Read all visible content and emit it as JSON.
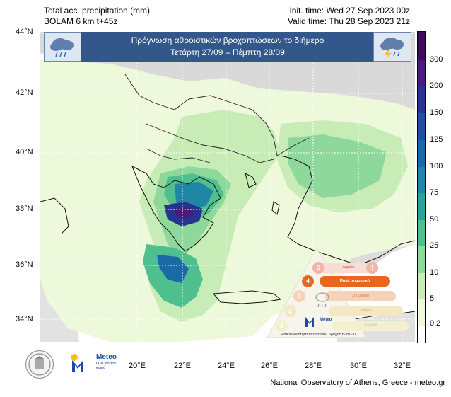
{
  "header": {
    "left_line1": "Total acc. precipitation (mm)",
    "left_line2": "BOLAM 6 km t+45z",
    "right_line1": "Init. time: Wed 27 Sep 2023 00z",
    "right_line2": "Valid time: Thu 28 Sep 2023 21z"
  },
  "banner": {
    "title": "Πρόγνωση αθροιστικών βροχοπτώσεων το διήμερο",
    "subtitle": "Τετάρτη 27/09 – Πέμπτη 28/09",
    "left_icon": "rain-cloud-icon",
    "right_icon": "thunderstorm-cloud-icon"
  },
  "axes": {
    "lat_labels": [
      "44°N",
      "42°N",
      "40°N",
      "38°N",
      "36°N",
      "34°N"
    ],
    "lon_labels": [
      "20°E",
      "22°E",
      "24°E",
      "26°E",
      "28°E",
      "30°E",
      "32°E"
    ]
  },
  "colorbar": {
    "labels": [
      "300",
      "200",
      "150",
      "125",
      "100",
      "75",
      "50",
      "25",
      "10",
      "5",
      "0.2"
    ],
    "colors": [
      "#3f0a5a",
      "#4a1b7a",
      "#27348f",
      "#1e4fa1",
      "#1b6aa8",
      "#1f86a6",
      "#2aa49a",
      "#4fbf8f",
      "#8fd89c",
      "#c7ecb5",
      "#eef8da",
      "#ffffff"
    ]
  },
  "legend": {
    "title": "Επικινδυνότητα επεισοδίου βροχοπτώσεων",
    "levels": [
      {
        "num": "5",
        "label": "Ακραίο",
        "color": "#f3b5a8"
      },
      {
        "num": "4",
        "label": "Πολύ σημαντικό",
        "color": "#e8671f"
      },
      {
        "num": "3",
        "label": "Σημαντικό",
        "color": "#f6d3b8"
      },
      {
        "num": "2",
        "label": "Μέτριο",
        "color": "#f5e6c4"
      },
      {
        "num": "1",
        "label": "Χαμηλό",
        "color": "#f2f0cf"
      }
    ],
    "brand": "Meteo"
  },
  "logos": {
    "brand": "Meteo",
    "tagline": "Όλα για τον καιρό"
  },
  "footer": "National Observatory of Athens, Greece - meteo.gr"
}
